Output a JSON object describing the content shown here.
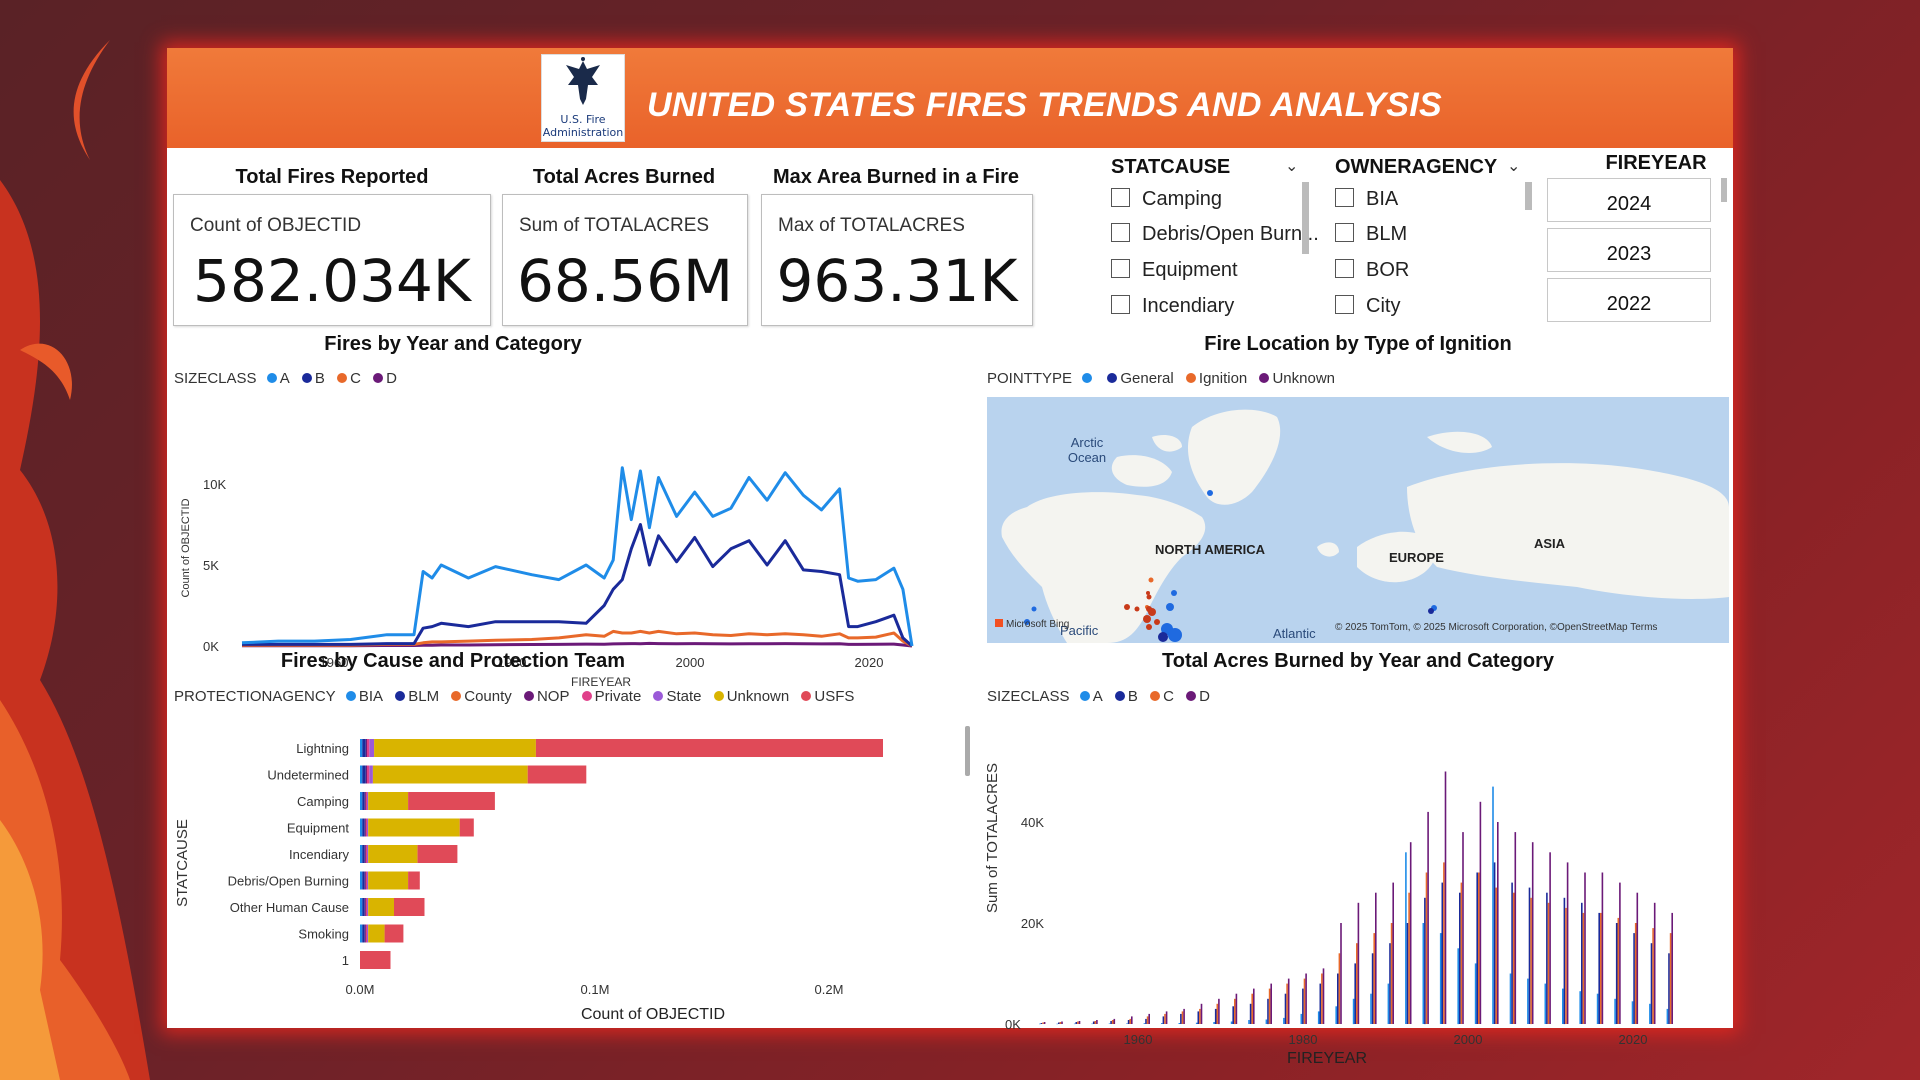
{
  "header": {
    "title": "UNITED STATES FIRES TRENDS AND ANALYSIS",
    "logo_text_1": "U.S. Fire",
    "logo_text_2": "Administration"
  },
  "kpis": [
    {
      "label": "Total Fires Reported",
      "sub": "Count of OBJECTID",
      "value": "582.034K"
    },
    {
      "label": "Total Acres Burned",
      "sub": "Sum of TOTALACRES",
      "value": "68.56M"
    },
    {
      "label": "Max Area Burned in a Fire",
      "sub": "Max of TOTALACRES",
      "value": "963.31K"
    }
  ],
  "slicers": {
    "statcause": {
      "title": "STATCAUSE",
      "options": [
        "Camping",
        "Debris/Open Burn...",
        "Equipment",
        "Incendiary"
      ]
    },
    "owneragency": {
      "title": "OWNERAGENCY",
      "options": [
        "BIA",
        "BLM",
        "BOR",
        "City"
      ]
    },
    "fireyear": {
      "title": "FIREYEAR",
      "options": [
        "2024",
        "2023",
        "2022"
      ]
    }
  },
  "colors": {
    "A": "#1f8ce8",
    "B": "#1a2a9a",
    "C": "#e8692a",
    "D": "#6b1a78",
    "BIA": "#1f8ce8",
    "BLM": "#1a2a9a",
    "County": "#e8692a",
    "NOP": "#6b1a78",
    "Private": "#e0408a",
    "State": "#9b5ad8",
    "Unknown": "#d9b400",
    "USFS": "#e04a58",
    "accent": "#e9622a"
  },
  "charts": {
    "line": {
      "title": "Fires by Year and Category",
      "legend_title": "SIZECLASS",
      "legend": [
        "A",
        "B",
        "C",
        "D"
      ],
      "ylabel": "Count of OBJECTID",
      "xlabel": "FIREYEAR",
      "y_ticks": [
        "10K",
        "5K",
        "0K"
      ],
      "x_ticks": [
        "1960",
        "1980",
        "2000",
        "2020"
      ]
    },
    "map": {
      "title": "Fire Location by Type of Ignition",
      "legend_title": "POINTTYPE",
      "legend": [
        "",
        "General",
        "Ignition",
        "Unknown"
      ],
      "labels": {
        "arctic": "Arctic\nOcean",
        "na": "NORTH AMERICA",
        "europe": "EUROPE",
        "asia": "ASIA",
        "pacific": "Pacific",
        "atlantic": "Atlantic"
      },
      "attribution": "© 2025 TomTom, © 2025 Microsoft Corporation, ©OpenStreetMap  Terms",
      "bing": "Microsoft Bing"
    },
    "bar": {
      "title": "Fires by Cause and Protection Team",
      "legend_title": "PROTECTIONAGENCY",
      "legend": [
        "BIA",
        "BLM",
        "County",
        "NOP",
        "Private",
        "State",
        "Unknown",
        "USFS"
      ],
      "ylabel": "STATCAUSE",
      "xlabel": "Count of OBJECTID",
      "x_ticks": [
        "0.0M",
        "0.1M",
        "0.2M"
      ]
    },
    "column": {
      "title": "Total Acres Burned by Year and Category",
      "legend_title": "SIZECLASS",
      "legend": [
        "A",
        "B",
        "C",
        "D"
      ],
      "ylabel": "Sum of TOTALACRES",
      "xlabel": "FIREYEAR",
      "y_ticks": [
        "40K",
        "20K",
        "0K"
      ],
      "x_ticks": [
        "1960",
        "1980",
        "2000",
        "2020"
      ]
    }
  },
  "chart_data": [
    {
      "type": "line",
      "title": "Fires by Year and Category",
      "xlabel": "FIREYEAR",
      "ylabel": "Count of OBJECTID",
      "ylim": [
        0,
        11000
      ],
      "xlim": [
        1950,
        2024
      ],
      "x": [
        1950,
        1954,
        1958,
        1962,
        1966,
        1969,
        1970,
        1971,
        1972,
        1975,
        1978,
        1982,
        1985,
        1988,
        1990,
        1991,
        1992,
        1993,
        1994,
        1995,
        1996,
        1998,
        2000,
        2002,
        2004,
        2006,
        2008,
        2010,
        2012,
        2014,
        2016,
        2017,
        2018,
        2020,
        2022,
        2023,
        2024
      ],
      "series": [
        {
          "name": "A",
          "values": [
            200,
            300,
            300,
            400,
            700,
            700,
            4600,
            4200,
            5000,
            4200,
            4900,
            4400,
            4100,
            5000,
            4200,
            5300,
            11000,
            7800,
            10800,
            7300,
            10400,
            8000,
            9500,
            8000,
            8500,
            10400,
            9000,
            10700,
            9300,
            8400,
            9700,
            4200,
            4000,
            4100,
            4800,
            3500,
            0
          ]
        },
        {
          "name": "B",
          "values": [
            100,
            100,
            100,
            100,
            150,
            150,
            1100,
            1200,
            1400,
            1200,
            1500,
            1500,
            1500,
            1400,
            2500,
            3500,
            4100,
            6000,
            7500,
            5000,
            6800,
            5200,
            6700,
            4900,
            6000,
            6500,
            5000,
            6500,
            4700,
            4600,
            4400,
            1200,
            1200,
            1500,
            1900,
            500,
            0
          ]
        },
        {
          "name": "C",
          "values": [
            50,
            50,
            50,
            50,
            100,
            100,
            200,
            250,
            250,
            300,
            350,
            400,
            500,
            700,
            600,
            900,
            800,
            800,
            900,
            800,
            900,
            750,
            800,
            700,
            650,
            750,
            700,
            750,
            700,
            600,
            750,
            500,
            500,
            550,
            800,
            300,
            0
          ]
        },
        {
          "name": "D",
          "values": [
            20,
            20,
            20,
            20,
            30,
            30,
            50,
            50,
            60,
            60,
            80,
            90,
            100,
            120,
            110,
            130,
            140,
            150,
            140,
            160,
            150,
            140,
            150,
            140,
            130,
            140,
            140,
            150,
            140,
            130,
            140,
            100,
            100,
            110,
            120,
            60,
            0
          ]
        }
      ]
    },
    {
      "type": "bar",
      "title": "Fires by Cause and Protection Team",
      "xlabel": "Count of OBJECTID",
      "ylabel": "STATCAUSE",
      "xlim": [
        0,
        0.25
      ],
      "categories": [
        "Lightning",
        "Undetermined",
        "Camping",
        "Equipment",
        "Incendiary",
        "Debris/Open Burning",
        "Other Human Cause",
        "Smoking",
        "1"
      ],
      "series": [
        {
          "name": "BIA",
          "values": [
            0.001,
            0.001,
            0.001,
            0.001,
            0.001,
            0.001,
            0.001,
            0.001,
            0.0
          ]
        },
        {
          "name": "BLM",
          "values": [
            0.0015,
            0.0015,
            0.001,
            0.001,
            0.001,
            0.001,
            0.001,
            0.001,
            0.0
          ]
        },
        {
          "name": "County",
          "values": [
            0.0,
            0.0,
            0.0,
            0.0,
            0.0,
            0.0,
            0.0,
            0.0,
            0.0
          ]
        },
        {
          "name": "NOP",
          "values": [
            0.0005,
            0.0005,
            0.0005,
            0.0005,
            0.0005,
            0.0005,
            0.0005,
            0.0005,
            0.0
          ]
        },
        {
          "name": "Private",
          "values": [
            0.001,
            0.001,
            0.0005,
            0.0005,
            0.0005,
            0.0005,
            0.0005,
            0.0005,
            0.0
          ]
        },
        {
          "name": "State",
          "values": [
            0.002,
            0.0015,
            0.0005,
            0.0005,
            0.0005,
            0.0005,
            0.0005,
            0.0005,
            0.0
          ]
        },
        {
          "name": "Unknown",
          "values": [
            0.069,
            0.066,
            0.017,
            0.039,
            0.021,
            0.017,
            0.011,
            0.007,
            0.0
          ]
        },
        {
          "name": "USFS",
          "values": [
            0.148,
            0.025,
            0.037,
            0.006,
            0.017,
            0.005,
            0.013,
            0.008,
            0.013
          ]
        }
      ]
    },
    {
      "type": "bar",
      "title": "Total Acres Burned by Year and Category",
      "xlabel": "FIREYEAR",
      "ylabel": "Sum of TOTALACRES",
      "ylim": [
        0,
        50000
      ],
      "xlim": [
        1950,
        2024
      ],
      "categories": [
        1950,
        1952,
        1954,
        1956,
        1958,
        1960,
        1962,
        1964,
        1966,
        1968,
        1970,
        1972,
        1974,
        1976,
        1978,
        1980,
        1982,
        1984,
        1986,
        1988,
        1990,
        1992,
        1994,
        1996,
        1998,
        2000,
        2002,
        2004,
        2006,
        2008,
        2010,
        2012,
        2014,
        2016,
        2018,
        2020,
        2022
      ],
      "series": [
        {
          "name": "A",
          "values": [
            50,
            60,
            70,
            80,
            100,
            120,
            150,
            180,
            200,
            250,
            400,
            500,
            800,
            900,
            1200,
            2000,
            2500,
            3500,
            5000,
            6000,
            8000,
            34000,
            20000,
            18000,
            15000,
            12000,
            47000,
            10000,
            9000,
            8000,
            7000,
            6500,
            6000,
            5000,
            4500,
            4000,
            3000
          ]
        },
        {
          "name": "B",
          "values": [
            200,
            300,
            400,
            500,
            600,
            800,
            1000,
            1500,
            2000,
            2500,
            3000,
            3500,
            4000,
            5000,
            6000,
            7000,
            8000,
            10000,
            12000,
            14000,
            16000,
            20000,
            25000,
            28000,
            26000,
            30000,
            32000,
            28000,
            27000,
            26000,
            25000,
            24000,
            22000,
            20000,
            18000,
            16000,
            14000
          ]
        },
        {
          "name": "C",
          "values": [
            300,
            400,
            500,
            600,
            800,
            1000,
            1500,
            2000,
            2500,
            3000,
            4000,
            5000,
            6000,
            7000,
            8000,
            9000,
            10000,
            14000,
            16000,
            18000,
            20000,
            26000,
            30000,
            32000,
            28000,
            30000,
            27000,
            26000,
            25000,
            24000,
            23000,
            22000,
            22000,
            21000,
            20000,
            19000,
            18000
          ]
        },
        {
          "name": "D",
          "values": [
            400,
            500,
            600,
            800,
            1000,
            1500,
            2000,
            2500,
            3000,
            4000,
            5000,
            6000,
            7000,
            8000,
            9000,
            10000,
            11000,
            20000,
            24000,
            26000,
            28000,
            36000,
            42000,
            50000,
            38000,
            44000,
            40000,
            38000,
            36000,
            34000,
            32000,
            30000,
            30000,
            28000,
            26000,
            24000,
            22000
          ]
        }
      ]
    }
  ]
}
